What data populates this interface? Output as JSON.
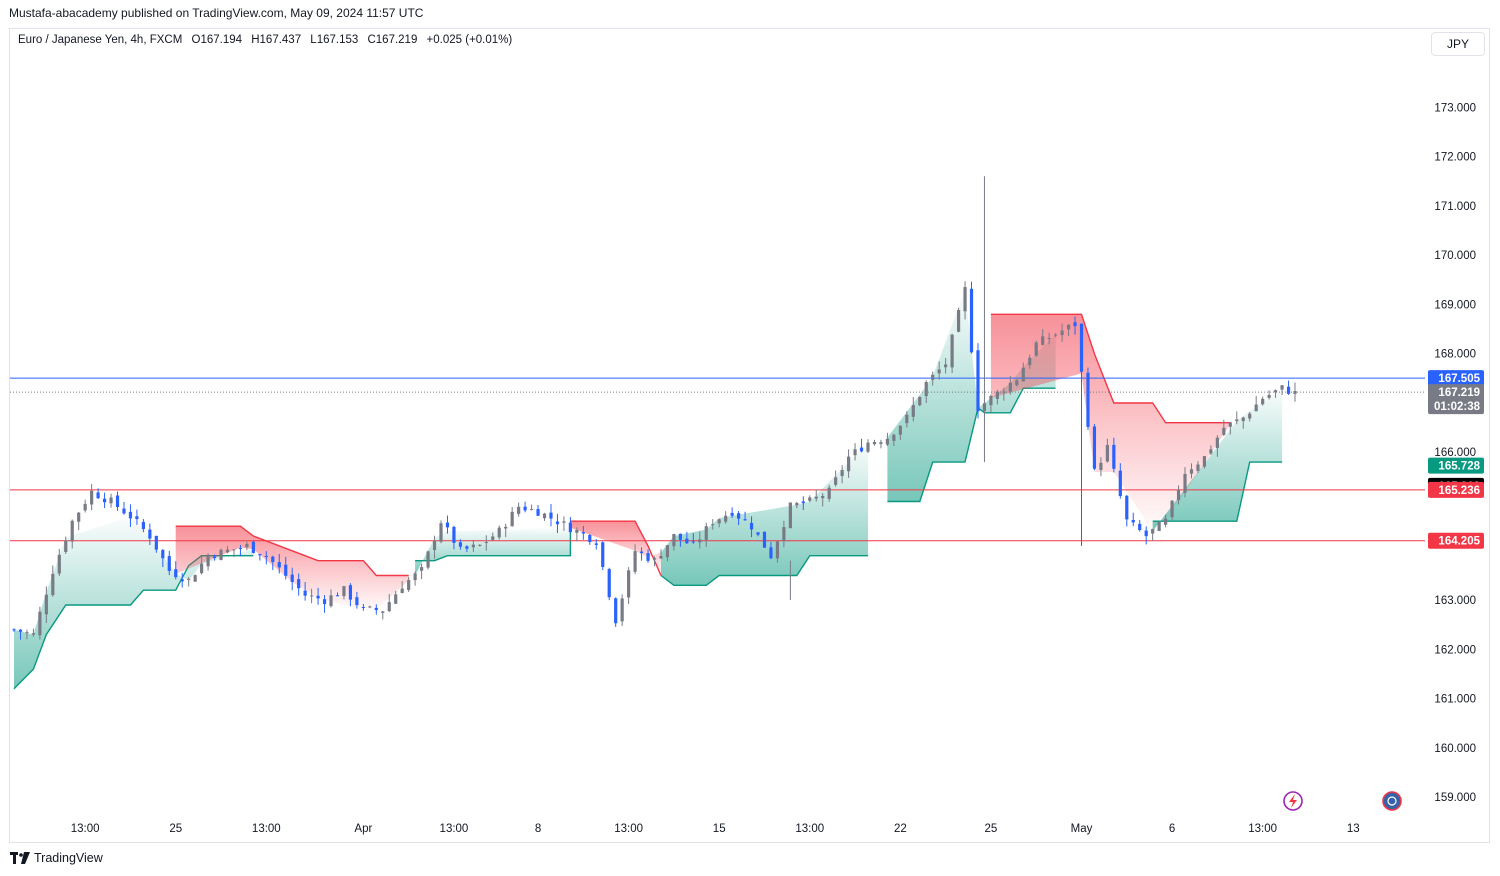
{
  "header": {
    "published": "Mustafa-abacademy published on TradingView.com, May 09, 2024 11:57 UTC"
  },
  "legend": {
    "symbol": "Euro / Japanese Yen, 4h, FXCM",
    "open": "O167.194",
    "high": "H167.437",
    "low": "L167.153",
    "close": "C167.219",
    "change": "+0.025 (+0.01%)"
  },
  "currency_button": "JPY",
  "footer": {
    "brand": "TradingView"
  },
  "colors": {
    "up": "#787b86",
    "down": "#2962ff",
    "red_line": "#f23645",
    "blue_line": "#2962ff",
    "band_green": "#089981",
    "band_red": "#f23645",
    "close_badge": "#787b86"
  },
  "chart_data": {
    "type": "candlestick",
    "symbol": "EURJPY",
    "timeframe": "4h",
    "ylim": [
      158.7,
      174.0
    ],
    "y_ticks": [
      "173.000",
      "172.000",
      "171.000",
      "170.000",
      "169.000",
      "168.000",
      "166.000",
      "163.000",
      "162.000",
      "161.000",
      "160.000",
      "159.000"
    ],
    "x_ticks": [
      "13:00",
      "25",
      "13:00",
      "Apr",
      "13:00",
      "8",
      "13:00",
      "15",
      "13:00",
      "22",
      "25",
      "May",
      "6",
      "13:00",
      "13"
    ],
    "horizontal_lines": [
      {
        "value": 167.505,
        "color": "#2962ff",
        "label": "167.505"
      },
      {
        "value": 165.236,
        "color": "#f23645",
        "label": "165.236"
      },
      {
        "value": 164.205,
        "color": "#f23645",
        "label": "164.205"
      }
    ],
    "price_badges": [
      {
        "value": 167.505,
        "label": "167.505",
        "color": "#2962ff"
      },
      {
        "value": 167.219,
        "label": "167.219",
        "sub": "01:02:38",
        "color": "#787b86"
      },
      {
        "value": 165.728,
        "label": "165.728",
        "color": "#089981"
      },
      {
        "value": 165.318,
        "label": "165.318",
        "color": "#000000"
      },
      {
        "value": 165.236,
        "label": "165.236",
        "color": "#f23645"
      },
      {
        "value": 164.205,
        "label": "164.205",
        "color": "#f23645"
      }
    ],
    "close_path": [
      [
        0,
        162.4
      ],
      [
        3,
        162.3
      ],
      [
        6,
        163.6
      ],
      [
        9,
        164.6
      ],
      [
        12,
        165.2
      ],
      [
        15,
        165.0
      ],
      [
        18,
        164.7
      ],
      [
        21,
        164.3
      ],
      [
        24,
        163.6
      ],
      [
        27,
        163.4
      ],
      [
        30,
        163.9
      ],
      [
        33,
        164.0
      ],
      [
        36,
        164.1
      ],
      [
        39,
        163.9
      ],
      [
        42,
        163.5
      ],
      [
        45,
        163.1
      ],
      [
        48,
        163.0
      ],
      [
        51,
        163.2
      ],
      [
        54,
        162.8
      ],
      [
        57,
        162.8
      ],
      [
        60,
        163.3
      ],
      [
        63,
        163.6
      ],
      [
        66,
        164.6
      ],
      [
        69,
        164.0
      ],
      [
        72,
        164.1
      ],
      [
        75,
        164.4
      ],
      [
        78,
        164.9
      ],
      [
        81,
        164.8
      ],
      [
        84,
        164.6
      ],
      [
        87,
        164.4
      ],
      [
        90,
        164.2
      ],
      [
        93,
        162.6
      ],
      [
        96,
        164.0
      ],
      [
        99,
        163.8
      ],
      [
        102,
        164.3
      ],
      [
        105,
        164.1
      ],
      [
        108,
        164.6
      ],
      [
        111,
        164.8
      ],
      [
        114,
        164.5
      ],
      [
        117,
        163.9
      ],
      [
        120,
        164.9
      ],
      [
        123,
        165.0
      ],
      [
        126,
        165.2
      ],
      [
        129,
        165.9
      ],
      [
        132,
        166.2
      ],
      [
        135,
        166.3
      ],
      [
        138,
        166.7
      ],
      [
        141,
        167.4
      ],
      [
        144,
        167.8
      ],
      [
        147,
        169.3
      ],
      [
        149,
        166.9
      ],
      [
        152,
        167.2
      ],
      [
        155,
        167.5
      ],
      [
        158,
        168.2
      ],
      [
        161,
        168.4
      ],
      [
        164,
        168.6
      ],
      [
        167,
        165.6
      ],
      [
        169,
        166.1
      ],
      [
        172,
        164.6
      ],
      [
        175,
        164.3
      ],
      [
        178,
        164.6
      ],
      [
        181,
        165.6
      ],
      [
        184,
        165.9
      ],
      [
        187,
        166.5
      ],
      [
        190,
        166.7
      ],
      [
        193,
        167.1
      ],
      [
        196,
        167.3
      ],
      [
        198,
        167.2
      ]
    ],
    "supertrend": [
      {
        "dir": "up",
        "pts": [
          [
            0,
            161.2
          ],
          [
            3,
            161.6
          ],
          [
            5,
            162.3
          ],
          [
            8,
            162.9
          ],
          [
            18,
            162.9
          ],
          [
            20,
            163.2
          ],
          [
            25,
            163.2
          ],
          [
            27,
            163.7
          ],
          [
            29,
            163.9
          ],
          [
            37,
            163.9
          ]
        ]
      },
      {
        "dir": "down",
        "pts": [
          [
            25,
            164.5
          ],
          [
            35,
            164.5
          ],
          [
            37,
            164.3
          ],
          [
            43,
            164.0
          ],
          [
            47,
            163.8
          ],
          [
            54,
            163.8
          ],
          [
            56,
            163.5
          ],
          [
            61,
            163.5
          ]
        ]
      },
      {
        "dir": "up",
        "pts": [
          [
            62,
            163.8
          ],
          [
            65,
            163.8
          ],
          [
            67,
            163.9
          ],
          [
            86,
            163.9
          ],
          [
            86,
            164.4
          ]
        ]
      },
      {
        "dir": "down",
        "pts": [
          [
            86,
            164.6
          ],
          [
            96,
            164.6
          ],
          [
            98,
            164.1
          ],
          [
            100,
            163.5
          ]
        ]
      },
      {
        "dir": "up",
        "pts": [
          [
            100,
            163.5
          ],
          [
            102,
            163.3
          ],
          [
            107,
            163.3
          ],
          [
            109,
            163.5
          ],
          [
            121,
            163.5
          ],
          [
            123,
            163.9
          ],
          [
            132,
            163.9
          ]
        ]
      },
      {
        "dir": "up",
        "pts": [
          [
            135,
            165.0
          ],
          [
            140,
            165.0
          ],
          [
            142,
            165.8
          ],
          [
            147,
            165.8
          ],
          [
            149,
            166.9
          ],
          [
            150,
            166.8
          ],
          [
            154,
            166.8
          ],
          [
            156,
            167.3
          ],
          [
            161,
            167.3
          ]
        ]
      },
      {
        "dir": "down",
        "pts": [
          [
            151,
            168.8
          ],
          [
            165,
            168.8
          ],
          [
            167,
            168.0
          ],
          [
            170,
            167.0
          ],
          [
            176,
            167.0
          ],
          [
            178,
            166.6
          ],
          [
            188,
            166.6
          ]
        ]
      },
      {
        "dir": "up",
        "pts": [
          [
            176,
            164.6
          ],
          [
            189,
            164.6
          ],
          [
            191,
            165.8
          ],
          [
            196,
            165.8
          ]
        ]
      }
    ],
    "spikes": [
      {
        "i": 150,
        "high": 171.6,
        "low": 165.8
      },
      {
        "i": 165,
        "high": 168.2,
        "low": 164.1
      },
      {
        "i": 120,
        "high": 163.8,
        "low": 163.0
      }
    ]
  }
}
